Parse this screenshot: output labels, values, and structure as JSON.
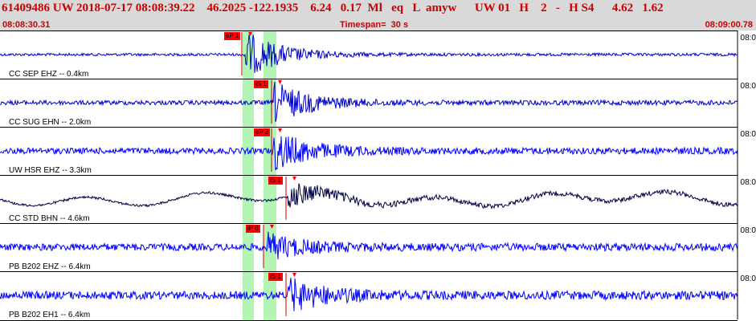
{
  "header": {
    "title": "61409486 UW 2018-07-17 08:08:39.22    46.2025 -122.1935    6.24   0.17  Ml   eq   L  amyw      UW 01   H    2   -   H S4      4.62   1.62",
    "start_time": "08:08:30.31",
    "timespan": "Timespan=  30 s",
    "end_time": "08:09:00.78"
  },
  "tick_label": "08:0",
  "channels": [
    {
      "label": "CC SEP EHZ -- 0.4km",
      "color": "#0000cc",
      "amp": 3,
      "pick": "eP 1",
      "arrive": 0.33,
      "burst": 30,
      "trace": "blue"
    },
    {
      "label": "CC SUG EHN -- 2.0km",
      "color": "#0000cc",
      "amp": 5,
      "pick": "iS 1",
      "arrive": 0.37,
      "burst": 26,
      "trace": "blue"
    },
    {
      "label": "UW HSR EHZ -- 3.3km",
      "color": "#0000ff",
      "amp": 7,
      "pick": "eP 2",
      "arrive": 0.37,
      "burst": 24,
      "trace": "blue"
    },
    {
      "label": "CC STD BHN -- 4.6km",
      "color": "#000044",
      "amp": 7,
      "pick": "iS 1",
      "arrive": 0.39,
      "burst": 22,
      "trace": "dark"
    },
    {
      "label": "PB B202 EHZ -- 6.4km",
      "color": "#0000ff",
      "amp": 8,
      "pick": "iP 0",
      "arrive": 0.36,
      "burst": 16,
      "trace": "blue"
    },
    {
      "label": "PB B202 EH1 -- 6.4km",
      "color": "#0000ff",
      "amp": 9,
      "pick": "iS 1",
      "arrive": 0.39,
      "burst": 20,
      "trace": "blue"
    }
  ]
}
